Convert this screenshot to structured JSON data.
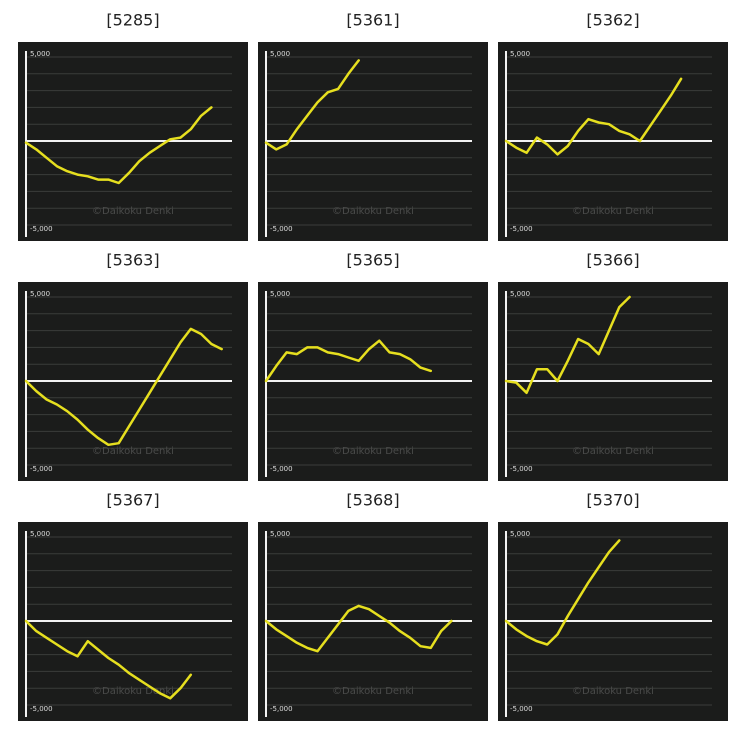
{
  "chart_data": [
    {
      "type": "line",
      "title": "[5285]",
      "color": "#e6df1f",
      "watermark": "©Daikoku Denki",
      "values": [
        -100,
        -500,
        -1000,
        -1500,
        -1800,
        -2000,
        -2100,
        -2300,
        -2300,
        -2500,
        -1900,
        -1200,
        -700,
        -300,
        100,
        200,
        700,
        1500,
        2000,
        null,
        null
      ],
      "ylim": [
        -5000,
        5000
      ],
      "yticks": [
        {
          "value": 5000,
          "label": "5,000"
        },
        {
          "value": -5000,
          "label": "-5,000"
        }
      ],
      "yminor": [
        -4000,
        -3000,
        -2000,
        -1000,
        0,
        1000,
        2000,
        3000,
        4000
      ]
    },
    {
      "type": "line",
      "title": "[5361]",
      "color": "#e6df1f",
      "watermark": "©Daikoku Denki",
      "values": [
        -100,
        -500,
        -200,
        700,
        1500,
        2300,
        2900,
        3100,
        4000,
        4800,
        null,
        null,
        null,
        null,
        null,
        null,
        null,
        null,
        null,
        null,
        null
      ],
      "ylim": [
        -5000,
        5000
      ],
      "yticks": [
        {
          "value": 5000,
          "label": "5,000"
        },
        {
          "value": -5000,
          "label": "-5,000"
        }
      ],
      "yminor": [
        -4000,
        -3000,
        -2000,
        -1000,
        0,
        1000,
        2000,
        3000,
        4000
      ]
    },
    {
      "type": "line",
      "title": "[5362]",
      "color": "#e6df1f",
      "watermark": "©Daikoku Denki",
      "values": [
        0,
        -400,
        -700,
        200,
        -200,
        -800,
        -300,
        600,
        1300,
        1100,
        1000,
        600,
        400,
        0,
        900,
        1800,
        2700,
        3700,
        null,
        null,
        null
      ],
      "ylim": [
        -5000,
        5000
      ],
      "yticks": [
        {
          "value": 5000,
          "label": "5,000"
        },
        {
          "value": -5000,
          "label": "-5,000"
        }
      ],
      "yminor": [
        -4000,
        -3000,
        -2000,
        -1000,
        0,
        1000,
        2000,
        3000,
        4000
      ]
    },
    {
      "type": "line",
      "title": "[5363]",
      "color": "#e6df1f",
      "watermark": "©Daikoku Denki",
      "values": [
        0,
        -600,
        -1100,
        -1400,
        -1800,
        -2300,
        -2900,
        -3400,
        -3800,
        -3700,
        -2700,
        -1700,
        -700,
        300,
        1300,
        2300,
        3100,
        2800,
        2200,
        1900,
        null
      ],
      "ylim": [
        -5000,
        5000
      ],
      "yticks": [
        {
          "value": 5000,
          "label": "5,000"
        },
        {
          "value": -5000,
          "label": "-5,000"
        }
      ],
      "yminor": [
        -4000,
        -3000,
        -2000,
        -1000,
        0,
        1000,
        2000,
        3000,
        4000
      ]
    },
    {
      "type": "line",
      "title": "[5365]",
      "color": "#e6df1f",
      "watermark": "©Daikoku Denki",
      "values": [
        0,
        900,
        1700,
        1600,
        2000,
        2000,
        1700,
        1600,
        1400,
        1200,
        1900,
        2400,
        1700,
        1600,
        1300,
        800,
        600,
        null,
        null,
        null,
        null
      ],
      "ylim": [
        -5000,
        5000
      ],
      "yticks": [
        {
          "value": 5000,
          "label": "5,000"
        },
        {
          "value": -5000,
          "label": "-5,000"
        }
      ],
      "yminor": [
        -4000,
        -3000,
        -2000,
        -1000,
        0,
        1000,
        2000,
        3000,
        4000
      ]
    },
    {
      "type": "line",
      "title": "[5366]",
      "color": "#e6df1f",
      "watermark": "©Daikoku Denki",
      "values": [
        0,
        -100,
        -700,
        700,
        700,
        0,
        1200,
        2500,
        2200,
        1600,
        3000,
        4400,
        5000,
        null,
        null,
        null,
        null,
        null,
        null,
        null,
        null
      ],
      "ylim": [
        -5000,
        5000
      ],
      "yticks": [
        {
          "value": 5000,
          "label": "5,000"
        },
        {
          "value": -5000,
          "label": "-5,000"
        }
      ],
      "yminor": [
        -4000,
        -3000,
        -2000,
        -1000,
        0,
        1000,
        2000,
        3000,
        4000
      ]
    },
    {
      "type": "line",
      "title": "[5367]",
      "color": "#e6df1f",
      "watermark": "©Daikoku Denki",
      "values": [
        0,
        -600,
        -1000,
        -1400,
        -1800,
        -2100,
        -1200,
        -1700,
        -2200,
        -2600,
        -3100,
        -3500,
        -3900,
        -4300,
        -4600,
        -4000,
        -3200,
        null,
        null,
        null,
        null
      ],
      "ylim": [
        -5000,
        5000
      ],
      "yticks": [
        {
          "value": 5000,
          "label": "5,000"
        },
        {
          "value": -5000,
          "label": "-5,000"
        }
      ],
      "yminor": [
        -4000,
        -3000,
        -2000,
        -1000,
        0,
        1000,
        2000,
        3000,
        4000
      ]
    },
    {
      "type": "line",
      "title": "[5368]",
      "color": "#e6df1f",
      "watermark": "©Daikoku Denki",
      "values": [
        0,
        -500,
        -900,
        -1300,
        -1600,
        -1800,
        -1000,
        -200,
        600,
        900,
        700,
        300,
        -100,
        -600,
        -1000,
        -1500,
        -1600,
        -600,
        0,
        null,
        null
      ],
      "ylim": [
        -5000,
        5000
      ],
      "yticks": [
        {
          "value": 5000,
          "label": "5,000"
        },
        {
          "value": -5000,
          "label": "-5,000"
        }
      ],
      "yminor": [
        -4000,
        -3000,
        -2000,
        -1000,
        0,
        1000,
        2000,
        3000,
        4000
      ]
    },
    {
      "type": "line",
      "title": "[5370]",
      "color": "#e6df1f",
      "watermark": "©Daikoku Denki",
      "values": [
        0,
        -500,
        -900,
        -1200,
        -1400,
        -800,
        300,
        1300,
        2300,
        3200,
        4100,
        4800,
        null,
        null,
        null,
        null,
        null,
        null,
        null,
        null,
        null
      ],
      "ylim": [
        -5000,
        5000
      ],
      "yticks": [
        {
          "value": 5000,
          "label": "5,000"
        },
        {
          "value": -5000,
          "label": "-5,000"
        }
      ],
      "yminor": [
        -4000,
        -3000,
        -2000,
        -1000,
        0,
        1000,
        2000,
        3000,
        4000
      ]
    }
  ]
}
